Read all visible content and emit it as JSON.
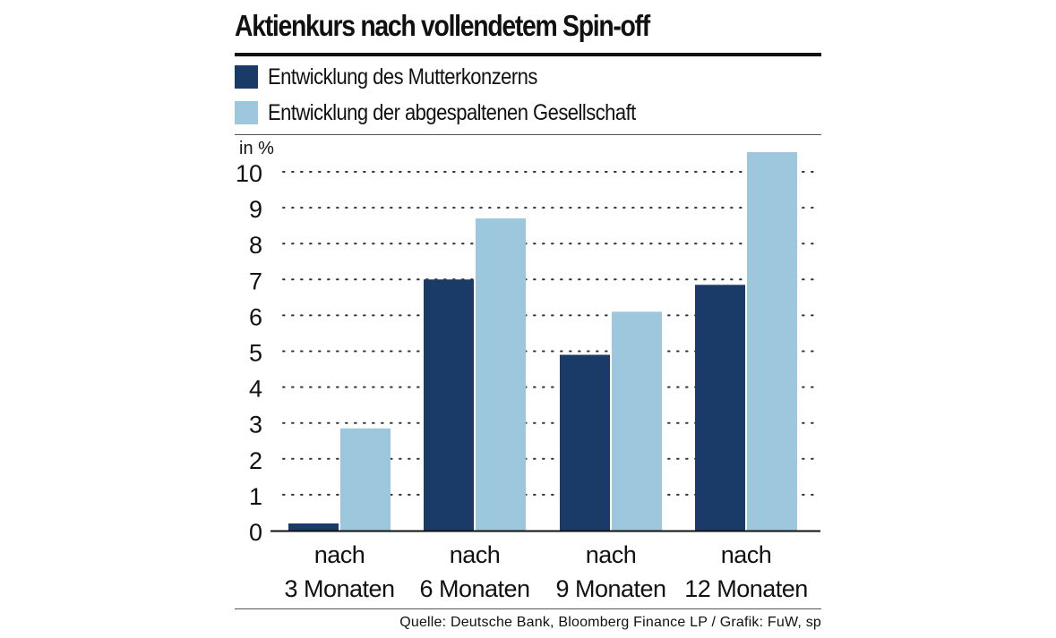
{
  "chart_data": {
    "type": "bar",
    "title": "Aktienkurs nach vollendetem Spin-off",
    "ylabel": "in %",
    "xlabel": "",
    "ylim": [
      0,
      10.5
    ],
    "yticks": [
      0,
      1,
      2,
      3,
      4,
      5,
      6,
      7,
      8,
      9,
      10
    ],
    "grid": true,
    "legend_position": "top",
    "categories": [
      [
        "nach",
        "3 Monaten"
      ],
      [
        "nach",
        "6 Monaten"
      ],
      [
        "nach",
        "9 Monaten"
      ],
      [
        "nach",
        "12 Monaten"
      ]
    ],
    "series": [
      {
        "name": "Entwicklung des Mutterkonzerns",
        "color": "#1a3a68",
        "values": [
          0.2,
          7.0,
          4.9,
          6.85
        ]
      },
      {
        "name": "Entwicklung der abgespaltenen Gesellschaft",
        "color": "#9cc7dd",
        "values": [
          2.85,
          8.7,
          6.1,
          10.55
        ]
      }
    ],
    "source": "Quelle: Deutsche Bank, Bloomberg Finance LP / Grafik: FuW, sp"
  },
  "colors": {
    "text": "#111111",
    "grid_dots": "#333333",
    "axis": "#111111"
  }
}
